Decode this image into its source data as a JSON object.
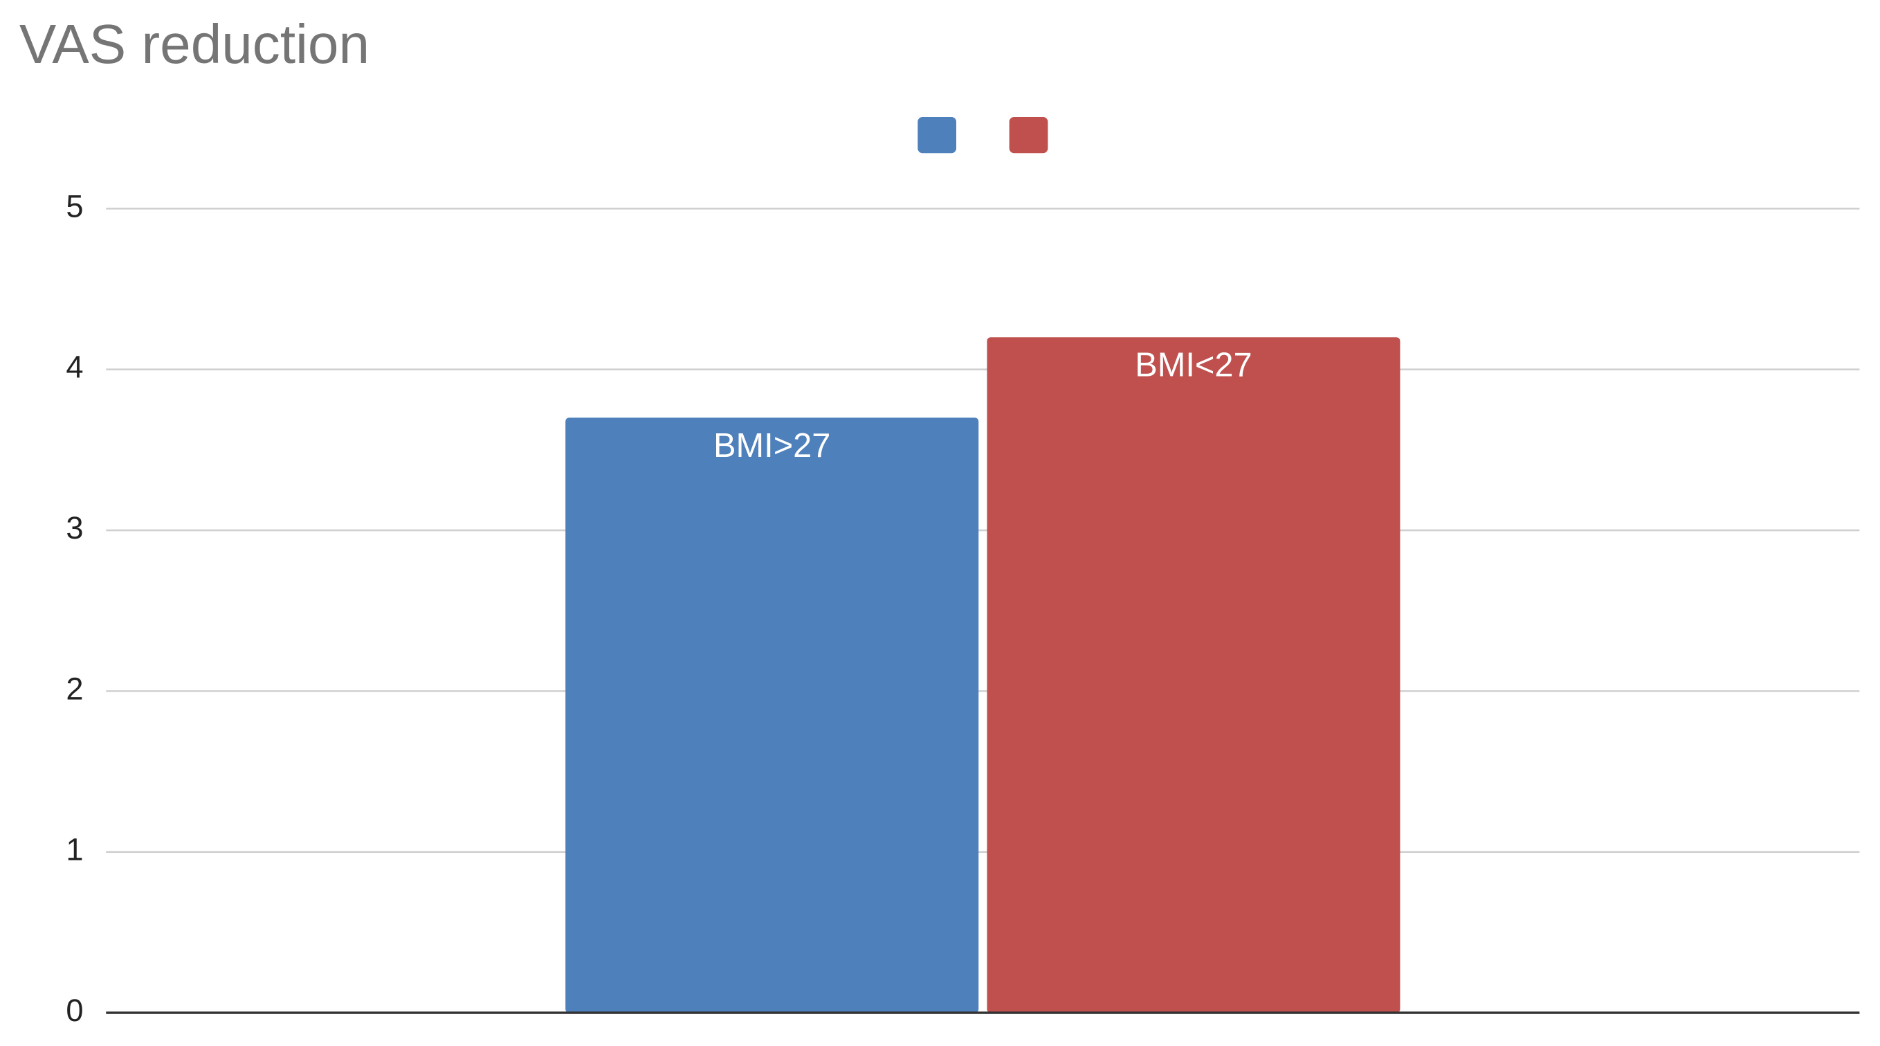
{
  "chart_data": {
    "type": "bar",
    "title": "VAS reduction",
    "categories": [
      null
    ],
    "series": [
      {
        "name": "BMI>27",
        "color": "#4e80bb",
        "values": [
          3.7
        ]
      },
      {
        "name": "BMI<27",
        "color": "#bf504d",
        "values": [
          4.2
        ]
      }
    ],
    "ylim": [
      0,
      5
    ],
    "yticks": [
      0,
      1,
      2,
      3,
      4,
      5
    ],
    "grid": true,
    "legend": "top"
  }
}
